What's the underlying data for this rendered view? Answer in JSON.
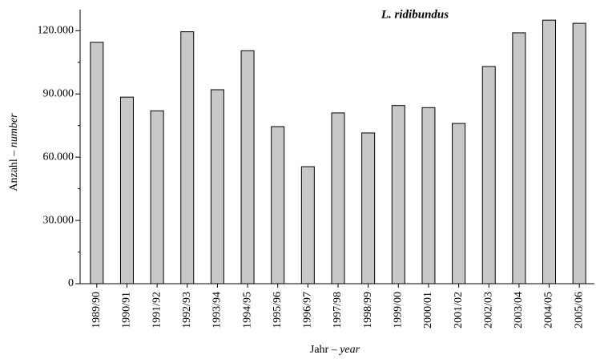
{
  "chart_data": {
    "type": "bar",
    "title": "L. ridibundus",
    "x_label": [
      "Jahr –",
      "year"
    ],
    "y_label": [
      "Anzahl –",
      "number"
    ],
    "categories": [
      "1989/90",
      "1990/91",
      "1991/92",
      "1992/93",
      "1993/94",
      "1994/95",
      "1995/96",
      "1996/97",
      "1997/98",
      "1998/99",
      "1999/00",
      "2000/01",
      "2001/02",
      "2002/03",
      "2003/04",
      "2004/05",
      "2005/06"
    ],
    "values": [
      114500,
      88500,
      82000,
      119500,
      92000,
      110500,
      74500,
      55500,
      81000,
      71500,
      84500,
      83500,
      76000,
      103000,
      119000,
      125000,
      123500
    ],
    "color": "#c8c8c8",
    "ylim": [
      0,
      130000
    ],
    "yticks": [
      0,
      {
        "value": 30000,
        "label": "30.000"
      },
      {
        "value": 60000,
        "label": "60.000"
      },
      {
        "value": 90000,
        "label": "90.000"
      },
      {
        "value": 120000,
        "label": "120.000"
      }
    ],
    "yminor": [
      15000,
      45000,
      75000,
      105000
    ],
    "grid": false
  }
}
